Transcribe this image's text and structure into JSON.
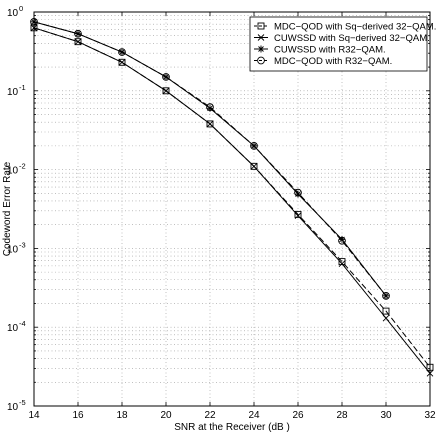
{
  "chart_data": {
    "type": "line",
    "xlabel": "SNR at the Receiver (dB )",
    "ylabel": "Codeword Error Rate",
    "xlim": [
      14,
      32
    ],
    "ylim": [
      1e-05,
      1
    ],
    "yscale": "log",
    "grid": true,
    "legend_position": "top-right",
    "x_ticks": [
      "14",
      "16",
      "18",
      "20",
      "22",
      "24",
      "26",
      "28",
      "30",
      "32"
    ],
    "y_ticks": [
      {
        "base": "10",
        "exp": "0"
      },
      {
        "base": "10",
        "exp": "-1"
      },
      {
        "base": "10",
        "exp": "-2"
      },
      {
        "base": "10",
        "exp": "-3"
      },
      {
        "base": "10",
        "exp": "-4"
      },
      {
        "base": "10",
        "exp": "-5"
      }
    ],
    "series": [
      {
        "name": "MDC−QOD with Sq−derived 32−QAM.",
        "marker": "square",
        "line": "dashed",
        "color": "#000000",
        "x": [
          14,
          16,
          18,
          20,
          22,
          24,
          26,
          28,
          30,
          32
        ],
        "y": [
          0.63,
          0.42,
          0.23,
          0.1,
          0.038,
          0.011,
          0.0027,
          0.00068,
          0.00016,
          3.1e-05
        ]
      },
      {
        "name": "CUWSSD with Sq−derived 32−QAM.",
        "marker": "x",
        "line": "solid",
        "color": "#000000",
        "x": [
          14,
          16,
          18,
          20,
          22,
          24,
          26,
          28,
          30,
          32
        ],
        "y": [
          0.63,
          0.42,
          0.23,
          0.1,
          0.038,
          0.011,
          0.0026,
          0.00064,
          0.00013,
          2.6e-05
        ]
      },
      {
        "name": "CUWSSD with R32−QAM.",
        "marker": "star",
        "line": "solid",
        "color": "#000000",
        "x": [
          14,
          16,
          18,
          20,
          22,
          24,
          26,
          28,
          30
        ],
        "y": [
          0.75,
          0.53,
          0.31,
          0.15,
          0.06,
          0.02,
          0.0049,
          0.0013,
          0.00025
        ]
      },
      {
        "name": "MDC−QOD with R32−QAM.",
        "marker": "circle",
        "line": "dashed",
        "color": "#000000",
        "x": [
          14,
          16,
          18,
          20,
          22,
          24,
          26,
          28,
          30
        ],
        "y": [
          0.75,
          0.53,
          0.31,
          0.15,
          0.062,
          0.02,
          0.0051,
          0.00125,
          0.00025
        ]
      }
    ]
  }
}
